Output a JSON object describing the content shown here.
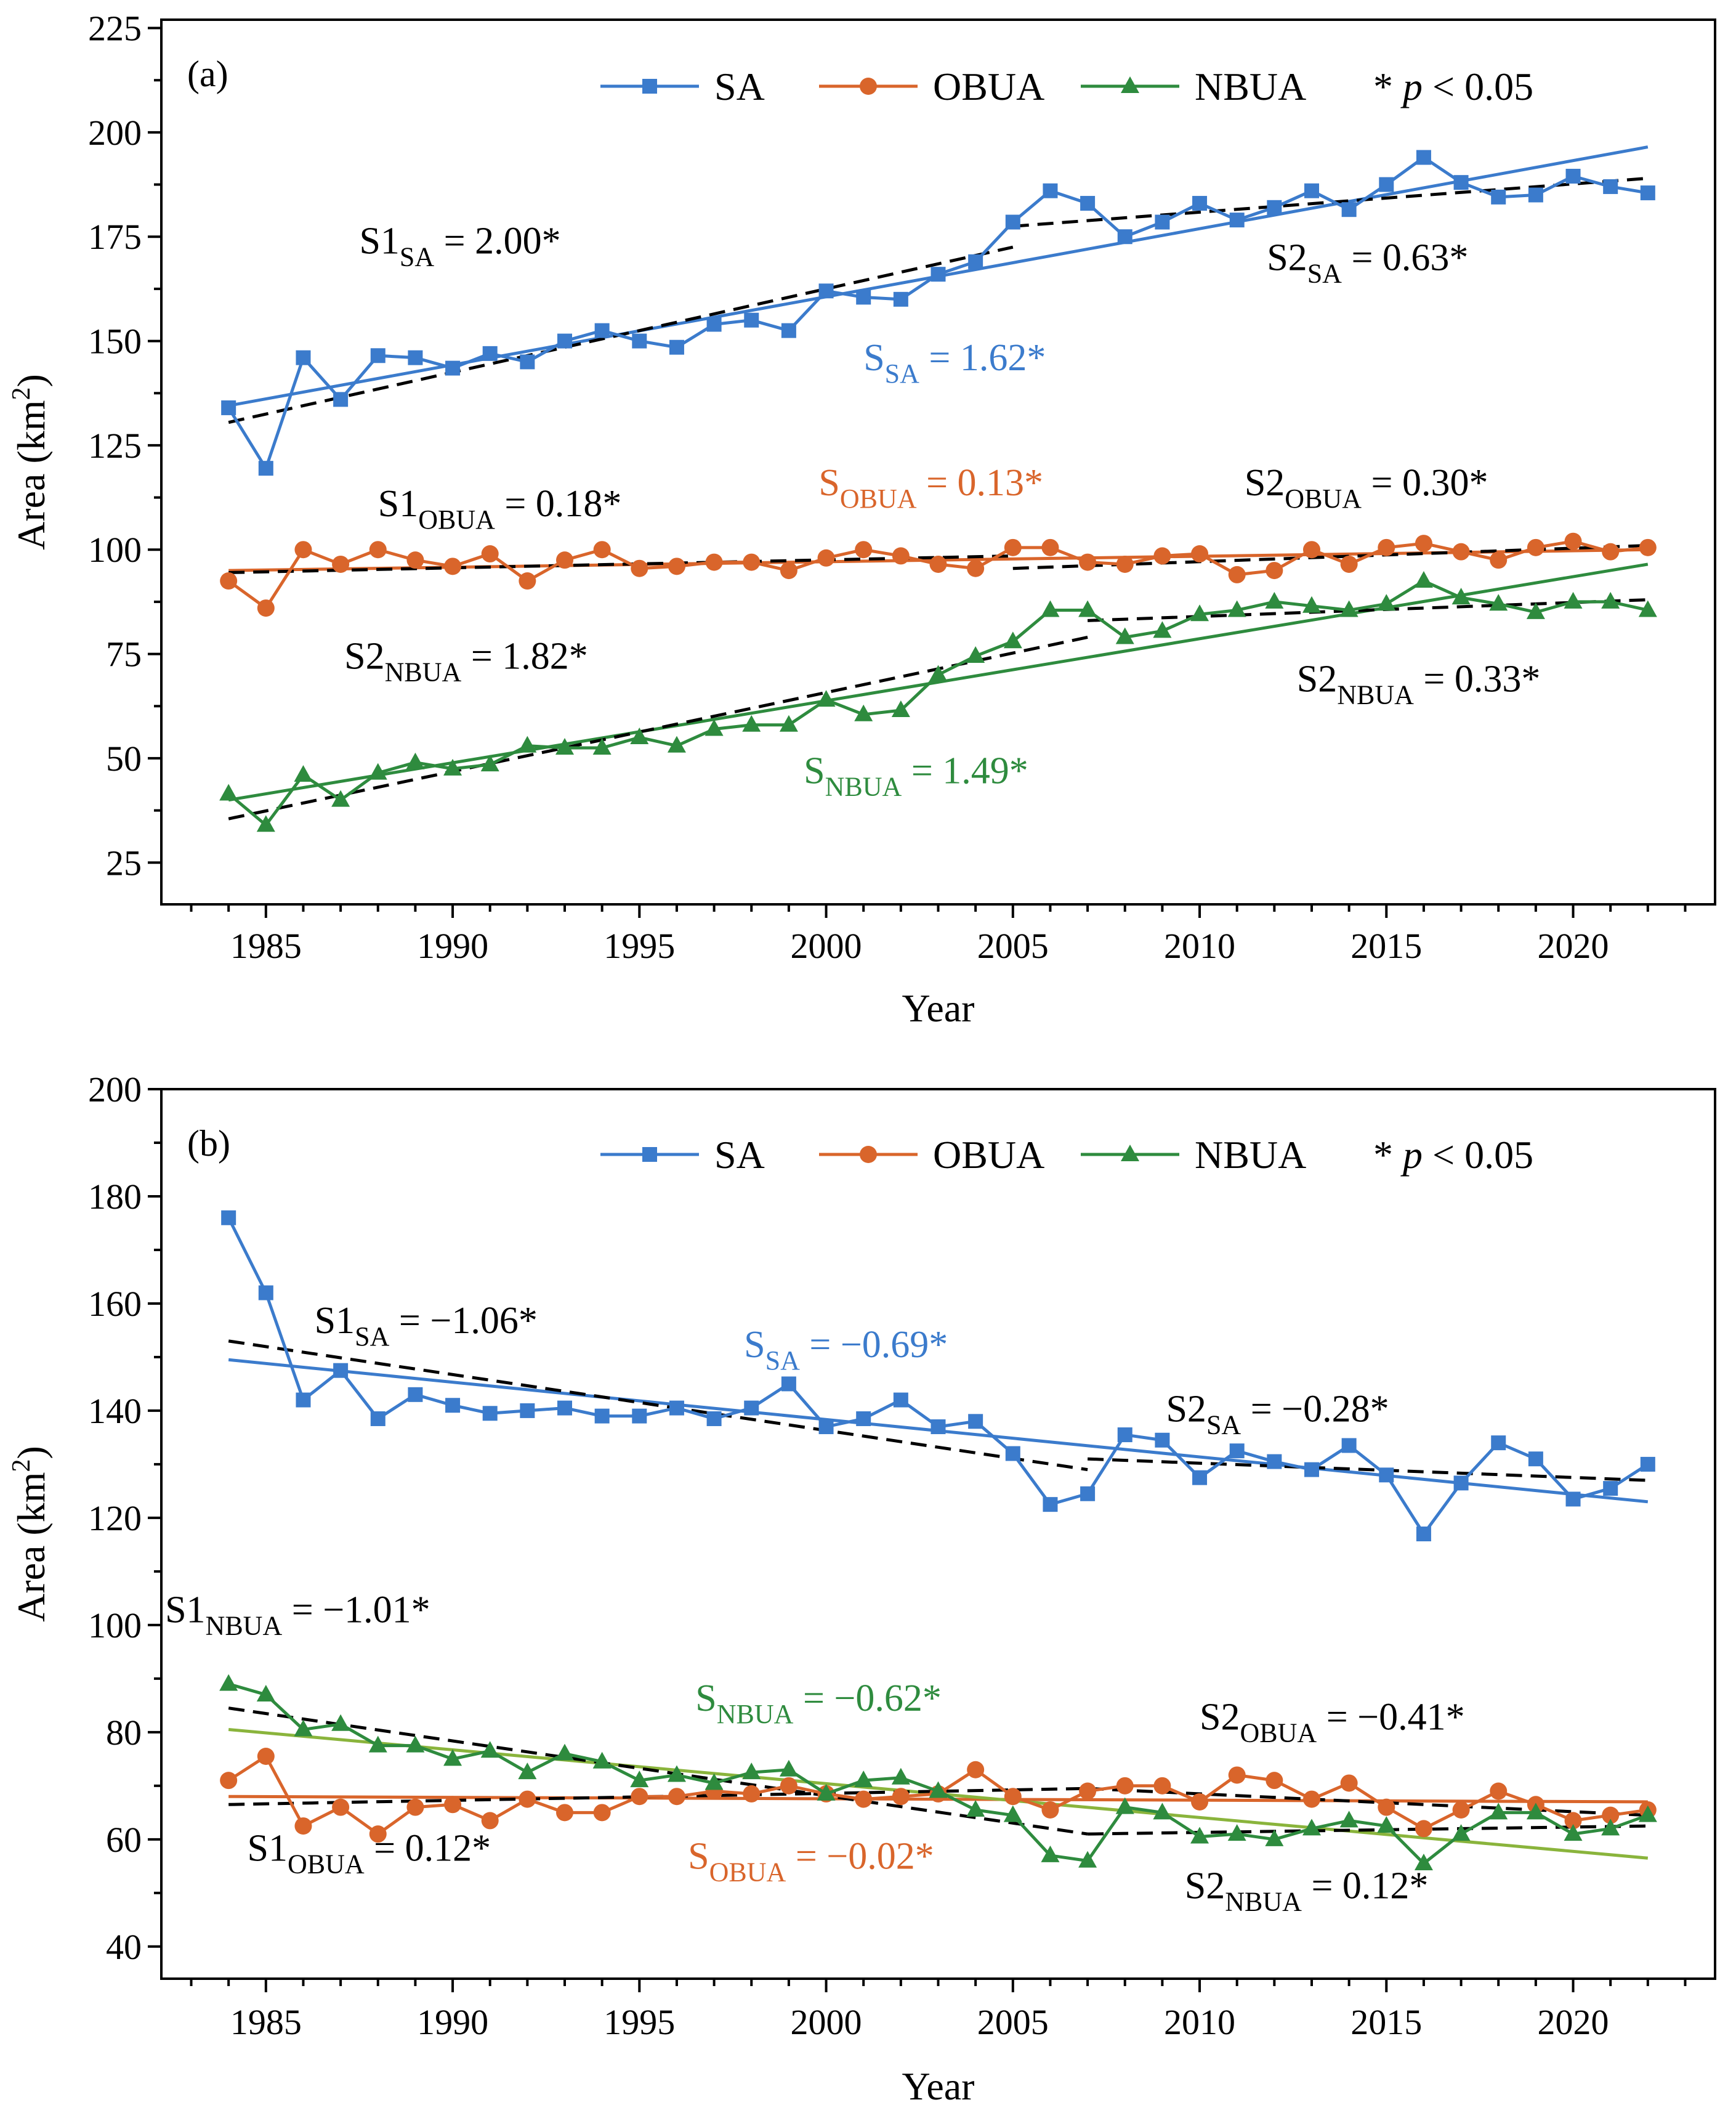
{
  "chart_data": [
    {
      "panel_label": "(a)",
      "type": "line",
      "xlabel": "Year",
      "ylabel": "Area (km",
      "ylabel_sup": "2",
      "ylabel_close": ")",
      "xlim": [
        1982.2,
        2023.8
      ],
      "ylim": [
        15,
        227
      ],
      "xticks": [
        1985,
        1990,
        1995,
        2000,
        2005,
        2010,
        2015,
        2020
      ],
      "yticks": [
        25,
        50,
        75,
        100,
        125,
        150,
        175,
        200,
        225
      ],
      "legend": {
        "position": "top",
        "entries": [
          "SA",
          "OBUA",
          "NBUA"
        ],
        "sig_star": "*",
        "sig_p": "p",
        "sig_rest": "< 0.05"
      },
      "x": [
        1984,
        1985,
        1986,
        1987,
        1988,
        1989,
        1990,
        1991,
        1992,
        1993,
        1994,
        1995,
        1996,
        1997,
        1998,
        1999,
        2000,
        2001,
        2002,
        2003,
        2004,
        2005,
        2006,
        2007,
        2008,
        2009,
        2010,
        2011,
        2012,
        2013,
        2014,
        2015,
        2016,
        2017,
        2018,
        2019,
        2020,
        2021,
        2022
      ],
      "series": [
        {
          "name": "SA",
          "marker": "square",
          "color": "#3b7bcc",
          "values": [
            134,
            119.5,
            146,
            136,
            146.5,
            146,
            143.5,
            147,
            145,
            150,
            152.5,
            150,
            148.5,
            154,
            155,
            152.5,
            162,
            160.5,
            160,
            166,
            169,
            178.5,
            186,
            183,
            175,
            178.5,
            183,
            179,
            182,
            186,
            181.5,
            187.5,
            194,
            188,
            184.5,
            185,
            189.5,
            187,
            185.5
          ],
          "fit": {
            "x": [
              1984,
              2022
            ],
            "y": [
              134.5,
              196.5
            ]
          },
          "segments": [
            {
              "x": [
                1984,
                2005
              ],
              "y": [
                130.5,
                172.5
              ]
            },
            {
              "x": [
                2005,
                2022
              ],
              "y": [
                177.5,
                189
              ]
            }
          ]
        },
        {
          "name": "OBUA",
          "marker": "circle",
          "color": "#d9652b",
          "values": [
            92.5,
            86,
            100,
            96.5,
            100,
            97.5,
            96,
            99,
            92.5,
            97.5,
            100,
            95.5,
            96,
            97,
            97,
            95,
            98,
            100,
            98.5,
            96.5,
            95.5,
            100.5,
            100.5,
            97,
            96.5,
            98.5,
            99,
            94,
            95,
            100,
            96.5,
            100.5,
            101.5,
            99.5,
            97.5,
            100.5,
            102,
            99.5,
            100.5
          ],
          "fit": {
            "x": [
              1984,
              2022
            ],
            "y": [
              95,
              100
            ]
          },
          "segments": [
            {
              "x": [
                1984,
                2005
              ],
              "y": [
                94.5,
                98.5
              ]
            },
            {
              "x": [
                2005,
                2022
              ],
              "y": [
                95.5,
                101
              ]
            }
          ]
        },
        {
          "name": "NBUA",
          "marker": "triangle",
          "color": "#2e8b3e",
          "values": [
            41.5,
            34,
            46,
            40,
            46.5,
            49,
            47.5,
            48.5,
            53,
            52.5,
            52.5,
            55,
            53,
            57,
            58,
            58,
            64,
            60.5,
            61.5,
            70,
            74.5,
            78,
            85.5,
            85.5,
            79,
            80.5,
            84.5,
            85.5,
            87.5,
            86.5,
            85.5,
            87,
            92.5,
            88.5,
            87,
            85,
            87.5,
            87.5,
            85.5
          ],
          "fit": {
            "x": [
              1984,
              2022
            ],
            "y": [
              40,
              96.5
            ]
          },
          "segments": [
            {
              "x": [
                1984,
                2007
              ],
              "y": [
                35.5,
                79
              ]
            },
            {
              "x": [
                2007,
                2022
              ],
              "y": [
                83,
                88
              ]
            }
          ]
        }
      ],
      "annotations": [
        {
          "main": "S1",
          "sub": "SA",
          "tail": " = 2.00*",
          "color": "#000000",
          "at": [
            1987.5,
            171
          ]
        },
        {
          "main": "S",
          "sub": "SA",
          "tail": " = 1.62*",
          "color": "#3b7bcc",
          "at": [
            2001,
            143
          ]
        },
        {
          "main": "S2",
          "sub": "SA",
          "tail": " = 0.63*",
          "color": "#000000",
          "at": [
            2011.8,
            167
          ]
        },
        {
          "main": "S1",
          "sub": "OBUA",
          "tail": " = 0.18*",
          "color": "#000000",
          "at": [
            1988,
            108
          ]
        },
        {
          "main": "S",
          "sub": "OBUA",
          "tail": " = 0.13*",
          "color": "#d9652b",
          "at": [
            1999.8,
            113
          ]
        },
        {
          "main": "S2",
          "sub": "OBUA",
          "tail": " = 0.30*",
          "color": "#000000",
          "at": [
            2011.2,
            113
          ]
        },
        {
          "main": "S2",
          "sub": "NBUA",
          "tail": " = 1.82*",
          "color": "#000000",
          "at": [
            1987.1,
            71.5
          ]
        },
        {
          "main": "S",
          "sub": "NBUA",
          "tail": " = 1.49*",
          "color": "#2e8b3e",
          "at": [
            1999.4,
            44
          ]
        },
        {
          "main": "S2",
          "sub": "NBUA",
          "tail": " = 0.33*",
          "color": "#000000",
          "at": [
            2012.6,
            66
          ]
        }
      ]
    },
    {
      "panel_label": "(b)",
      "type": "line",
      "xlabel": "Year",
      "ylabel": "Area (km",
      "ylabel_sup": "2",
      "ylabel_close": ")",
      "xlim": [
        1982.2,
        2023.8
      ],
      "ylim": [
        34,
        200
      ],
      "xticks": [
        1985,
        1990,
        1995,
        2000,
        2005,
        2010,
        2015,
        2020
      ],
      "yticks": [
        40,
        60,
        80,
        100,
        120,
        140,
        160,
        180,
        200
      ],
      "legend": {
        "position": "top",
        "entries": [
          "SA",
          "OBUA",
          "NBUA"
        ],
        "sig_star": "*",
        "sig_p": "p",
        "sig_rest": "< 0.05"
      },
      "x": [
        1984,
        1985,
        1986,
        1987,
        1988,
        1989,
        1990,
        1991,
        1992,
        1993,
        1994,
        1995,
        1996,
        1997,
        1998,
        1999,
        2000,
        2001,
        2002,
        2003,
        2004,
        2005,
        2006,
        2007,
        2008,
        2009,
        2010,
        2011,
        2012,
        2013,
        2014,
        2015,
        2016,
        2017,
        2018,
        2019,
        2020,
        2021,
        2022
      ],
      "series": [
        {
          "name": "SA",
          "marker": "square",
          "color": "#3b7bcc",
          "values": [
            176,
            162,
            142,
            147.5,
            138.5,
            143,
            141,
            139.5,
            140,
            140.5,
            139,
            139,
            140.5,
            138.5,
            140.5,
            145,
            137,
            138.5,
            142,
            137,
            138,
            132,
            122.5,
            124.5,
            135.5,
            134.5,
            127.5,
            132.5,
            130.5,
            129,
            133.5,
            128,
            117,
            126.5,
            134,
            131,
            123.5,
            125.5,
            130
          ],
          "fit": {
            "x": [
              1984,
              2022
            ],
            "y": [
              149.5,
              123
            ]
          },
          "segments": [
            {
              "x": [
                1984,
                2007
              ],
              "y": [
                153,
                129
              ]
            },
            {
              "x": [
                2007,
                2022
              ],
              "y": [
                131,
                127
              ]
            }
          ]
        },
        {
          "name": "OBUA",
          "marker": "circle",
          "color": "#d9652b",
          "values": [
            71,
            75.5,
            62.5,
            66,
            61,
            66,
            66.5,
            63.5,
            67.5,
            65,
            65,
            68,
            68,
            69,
            68.5,
            70,
            68.5,
            67.5,
            68,
            68.5,
            73,
            68,
            65.5,
            69,
            70,
            70,
            67,
            72,
            71,
            67.5,
            70.5,
            66,
            62,
            65.5,
            69,
            66.5,
            63.5,
            64.5,
            65.5
          ],
          "fit": {
            "x": [
              1984,
              2022
            ],
            "y": [
              68,
              67
            ]
          },
          "segments": [
            {
              "x": [
                1984,
                2007
              ],
              "y": [
                66.5,
                69.5
              ]
            },
            {
              "x": [
                2007,
                2022
              ],
              "y": [
                69.5,
                64.5
              ]
            }
          ]
        },
        {
          "name": "NBUA",
          "marker": "triangle",
          "color": "#2e8b3e",
          "values": [
            89,
            87,
            80.5,
            81.5,
            77.5,
            77.5,
            75,
            76.5,
            72.5,
            76,
            74.5,
            71,
            72,
            70.5,
            72.5,
            73,
            68.5,
            71,
            71.5,
            69,
            65.5,
            64.5,
            57,
            56,
            66,
            65,
            60.5,
            61,
            60,
            62,
            63.5,
            62.5,
            55.5,
            61,
            65,
            65,
            61,
            62,
            64.5
          ],
          "fit": {
            "x": [
              1984,
              2022
            ],
            "y": [
              80.5,
              56.5
            ]
          },
          "fit_color": "#8ab43c",
          "segments": [
            {
              "x": [
                1984,
                2007
              ],
              "y": [
                84.5,
                61
              ]
            },
            {
              "x": [
                2007,
                2022
              ],
              "y": [
                61,
                62.5
              ]
            }
          ]
        }
      ],
      "annotations": [
        {
          "main": "S1",
          "sub": "SA",
          "tail": " = −1.06*",
          "color": "#000000",
          "at": [
            1986.3,
            154.5
          ]
        },
        {
          "main": "S",
          "sub": "SA",
          "tail": " = −0.69*",
          "color": "#3b7bcc",
          "at": [
            1997.8,
            150
          ]
        },
        {
          "main": "S2",
          "sub": "SA",
          "tail": " = −0.28*",
          "color": "#000000",
          "at": [
            2009.1,
            138
          ]
        },
        {
          "main": "S1",
          "sub": "NBUA",
          "tail": " = −1.01*",
          "color": "#000000",
          "at": [
            1982.3,
            100.5
          ]
        },
        {
          "main": "S",
          "sub": "NBUA",
          "tail": " = −0.62*",
          "color": "#2e8b3e",
          "at": [
            1996.5,
            84
          ]
        },
        {
          "main": "S2",
          "sub": "OBUA",
          "tail": " = −0.41*",
          "color": "#000000",
          "at": [
            2010,
            80.5
          ]
        },
        {
          "main": "S1",
          "sub": "OBUA",
          "tail": " = 0.12*",
          "color": "#000000",
          "at": [
            1984.5,
            56
          ]
        },
        {
          "main": "S",
          "sub": "OBUA",
          "tail": " = −0.02*",
          "color": "#d9652b",
          "at": [
            1996.3,
            54.5
          ]
        },
        {
          "main": "S2",
          "sub": "NBUA",
          "tail": " = 0.12*",
          "color": "#000000",
          "at": [
            2009.6,
            49
          ]
        }
      ]
    }
  ]
}
